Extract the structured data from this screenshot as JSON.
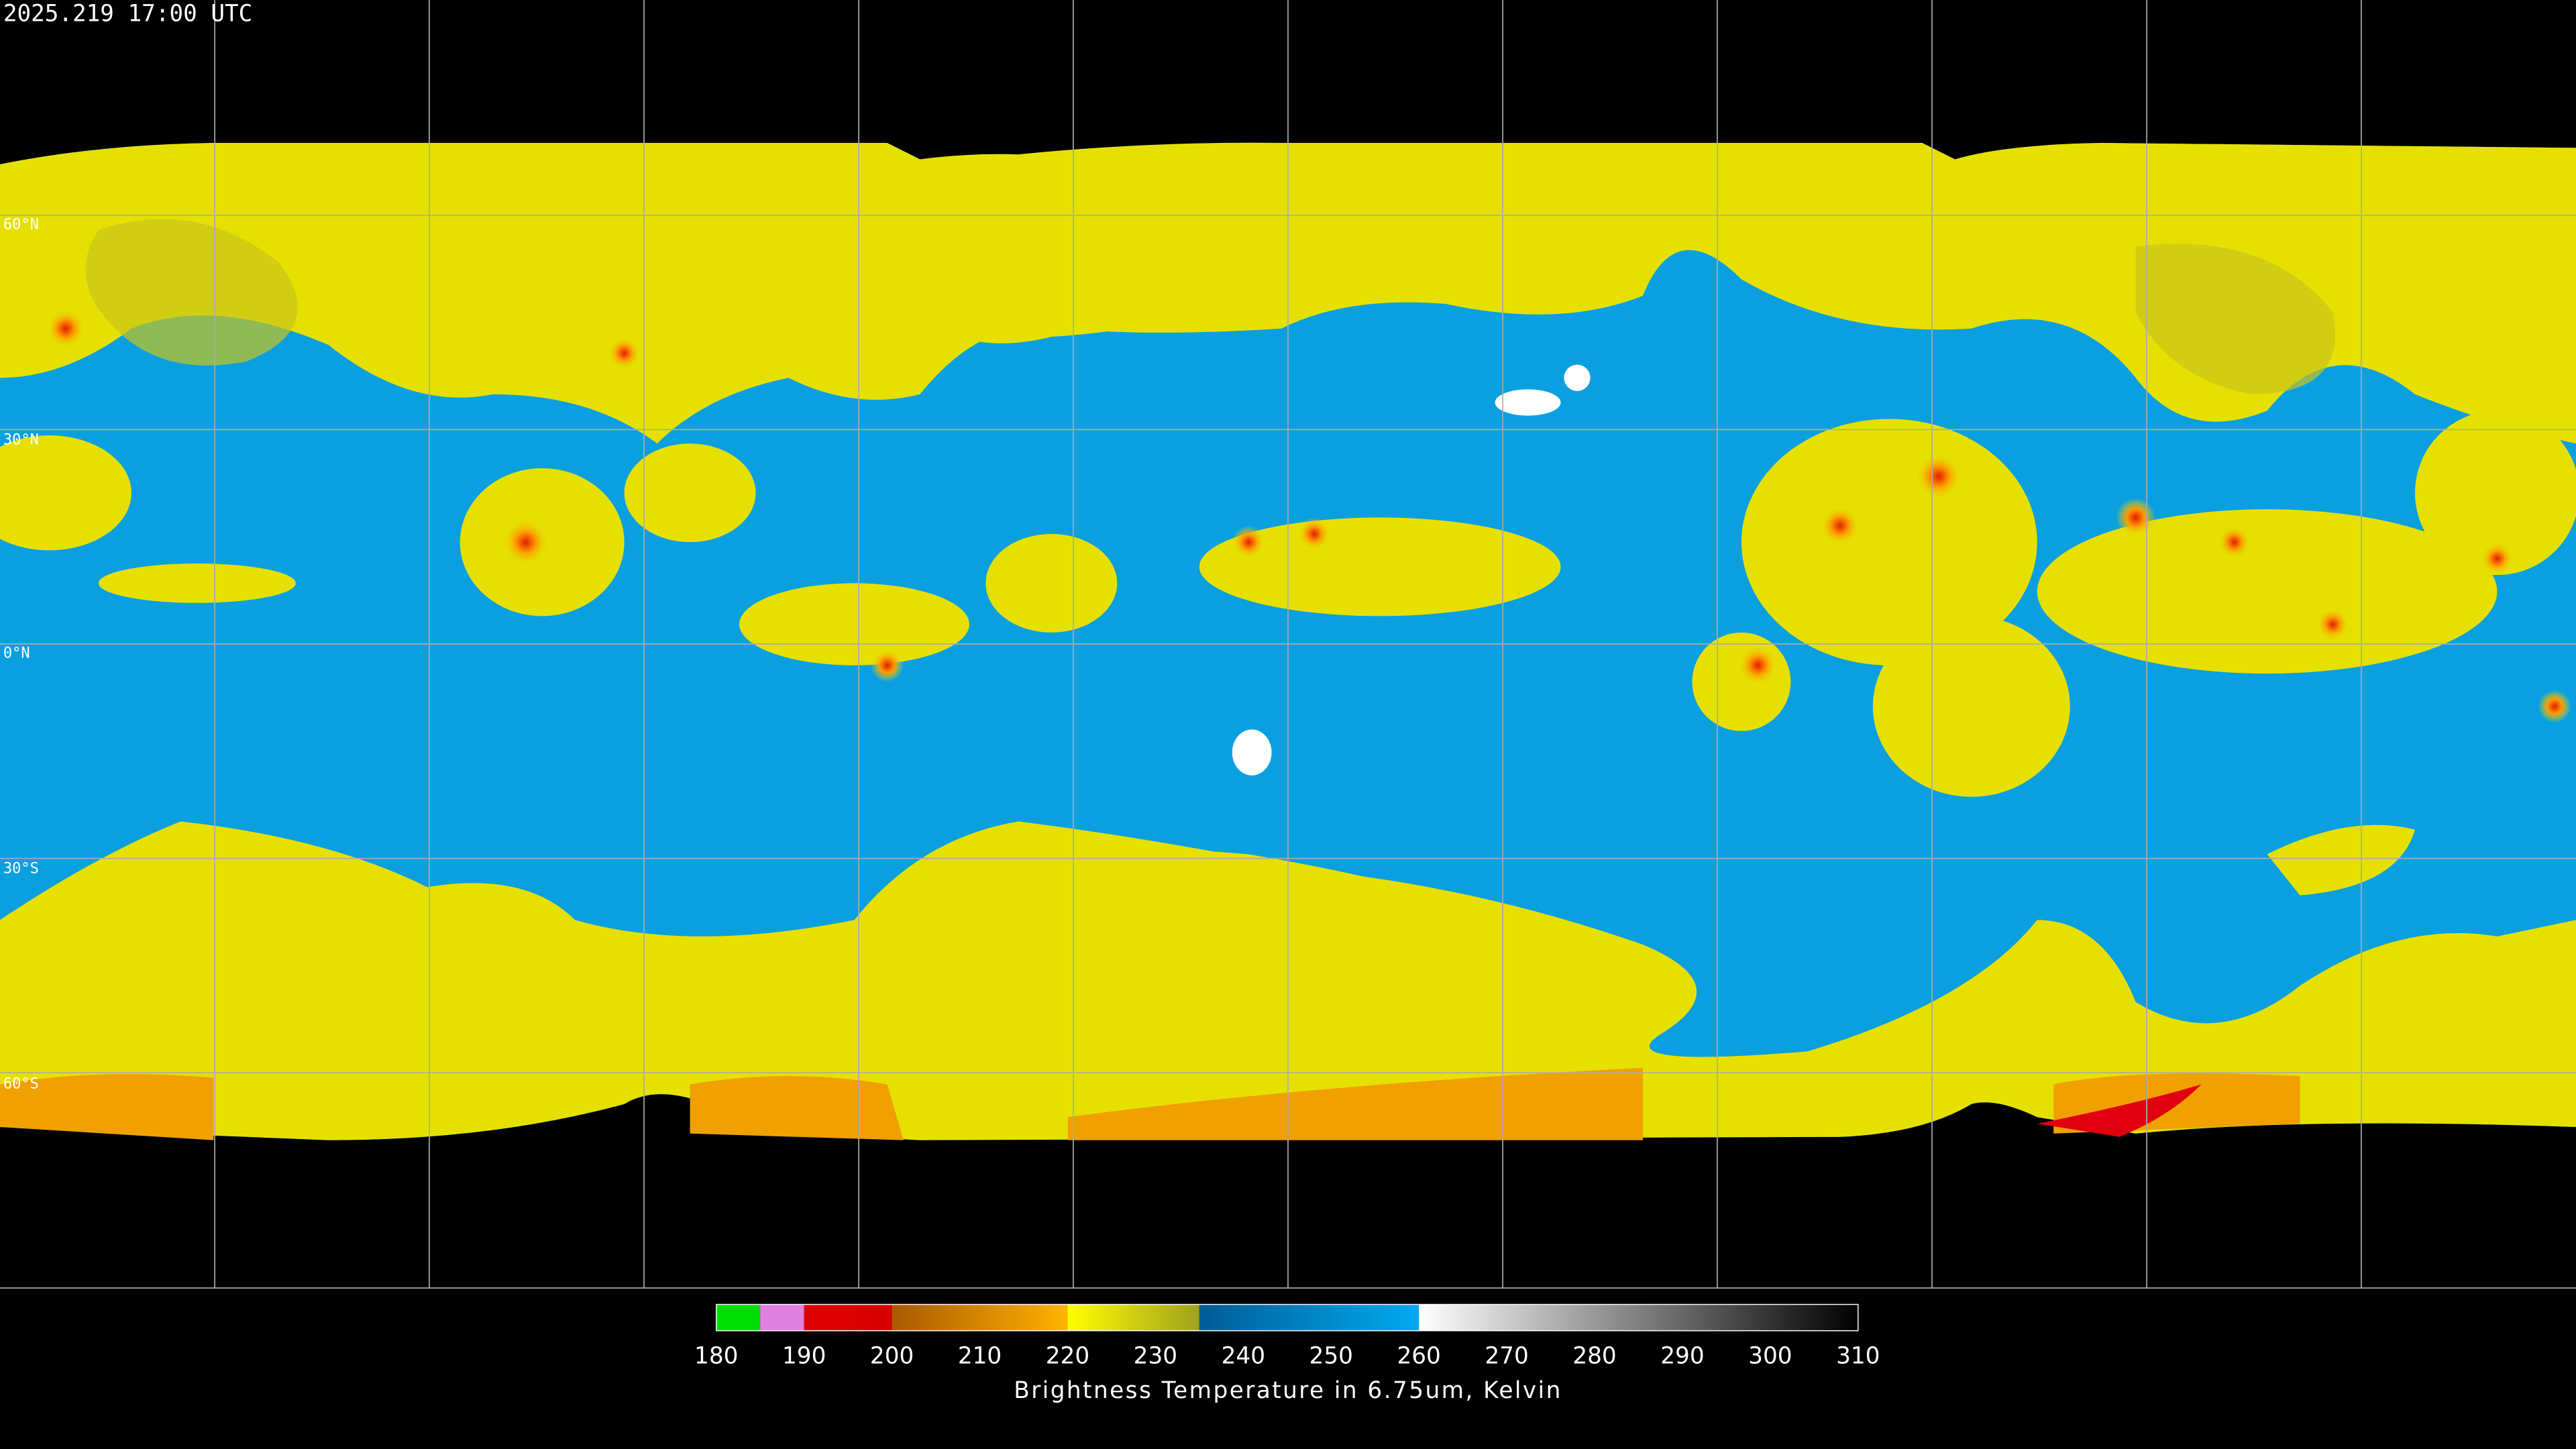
{
  "header": {
    "timestamp": "2025.219 17:00 UTC"
  },
  "map": {
    "lat_labels": [
      "60°N",
      "30°N",
      "0°N",
      "30°S",
      "60°S"
    ]
  },
  "colorbar": {
    "title": "Brightness Temperature in 6.75um, Kelvin",
    "lim": [
      180,
      310
    ],
    "ticks": [
      180,
      190,
      200,
      210,
      220,
      230,
      240,
      250,
      260,
      270,
      280,
      290,
      300,
      310
    ],
    "segments": [
      {
        "from": 180,
        "to": 185,
        "colors": [
          "#00dd00",
          "#00dd00"
        ]
      },
      {
        "from": 185,
        "to": 190,
        "colors": [
          "#e080e0",
          "#e080e0"
        ]
      },
      {
        "from": 190,
        "to": 200,
        "colors": [
          "#e00000",
          "#d80000"
        ]
      },
      {
        "from": 200,
        "to": 220,
        "colors": [
          "#a85a00",
          "#ffb400"
        ]
      },
      {
        "from": 220,
        "to": 235,
        "colors": [
          "#ffff00",
          "#a0a020"
        ]
      },
      {
        "from": 235,
        "to": 260,
        "colors": [
          "#005c96",
          "#00aaf0"
        ]
      },
      {
        "from": 260,
        "to": 310,
        "colors": [
          "#ffffff",
          "#000000"
        ]
      }
    ]
  }
}
